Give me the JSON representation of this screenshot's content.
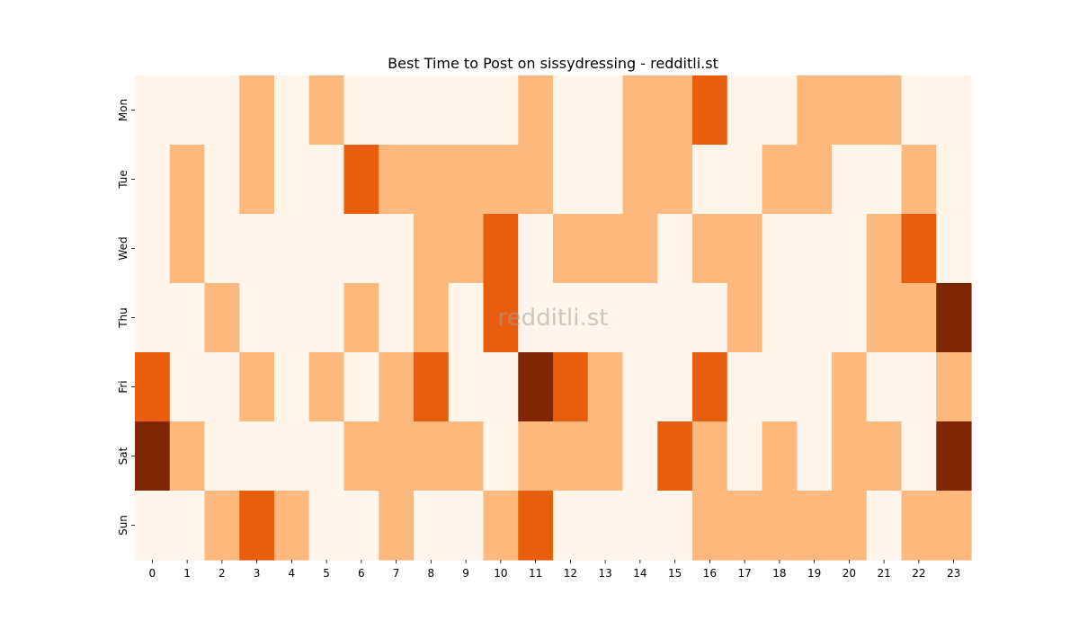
{
  "chart_data": {
    "type": "heatmap",
    "title": "Best Time to Post on sissydressing - redditli.st",
    "watermark": "redditli.st",
    "x_categories": [
      "0",
      "1",
      "2",
      "3",
      "4",
      "5",
      "6",
      "7",
      "8",
      "9",
      "10",
      "11",
      "12",
      "13",
      "14",
      "15",
      "16",
      "17",
      "18",
      "19",
      "20",
      "21",
      "22",
      "23"
    ],
    "y_categories": [
      "Mon",
      "Tue",
      "Wed",
      "Thu",
      "Fri",
      "Sat",
      "Sun"
    ],
    "values": [
      [
        0,
        0,
        0,
        1,
        0,
        1,
        0,
        0,
        0,
        0,
        0,
        1,
        0,
        0,
        1,
        1,
        2,
        0,
        0,
        1,
        1,
        1,
        0,
        0
      ],
      [
        0,
        1,
        0,
        1,
        0,
        0,
        2,
        1,
        1,
        1,
        1,
        1,
        0,
        0,
        1,
        1,
        0,
        0,
        1,
        1,
        0,
        0,
        1,
        0
      ],
      [
        0,
        1,
        0,
        0,
        0,
        0,
        0,
        0,
        1,
        1,
        2,
        0,
        1,
        1,
        1,
        0,
        1,
        1,
        0,
        0,
        0,
        1,
        2,
        0
      ],
      [
        0,
        0,
        1,
        0,
        0,
        0,
        1,
        0,
        1,
        0,
        2,
        0,
        0,
        0,
        0,
        0,
        0,
        1,
        0,
        0,
        0,
        1,
        1,
        3
      ],
      [
        2,
        0,
        0,
        1,
        0,
        1,
        0,
        1,
        2,
        0,
        0,
        3,
        2,
        1,
        0,
        0,
        2,
        0,
        0,
        0,
        1,
        0,
        0,
        1
      ],
      [
        3,
        1,
        0,
        0,
        0,
        0,
        1,
        1,
        1,
        1,
        0,
        1,
        1,
        1,
        0,
        2,
        1,
        0,
        1,
        0,
        1,
        1,
        0,
        3
      ],
      [
        0,
        0,
        1,
        2,
        1,
        0,
        0,
        1,
        0,
        0,
        1,
        2,
        0,
        0,
        0,
        0,
        1,
        1,
        1,
        1,
        1,
        0,
        1,
        1
      ]
    ],
    "value_range": [
      0,
      3
    ],
    "colormap": {
      "0": "#fff5eb",
      "1": "#fdb97d",
      "2": "#e95e0d",
      "3": "#7f2704"
    },
    "colorbar": false,
    "grid": false
  }
}
